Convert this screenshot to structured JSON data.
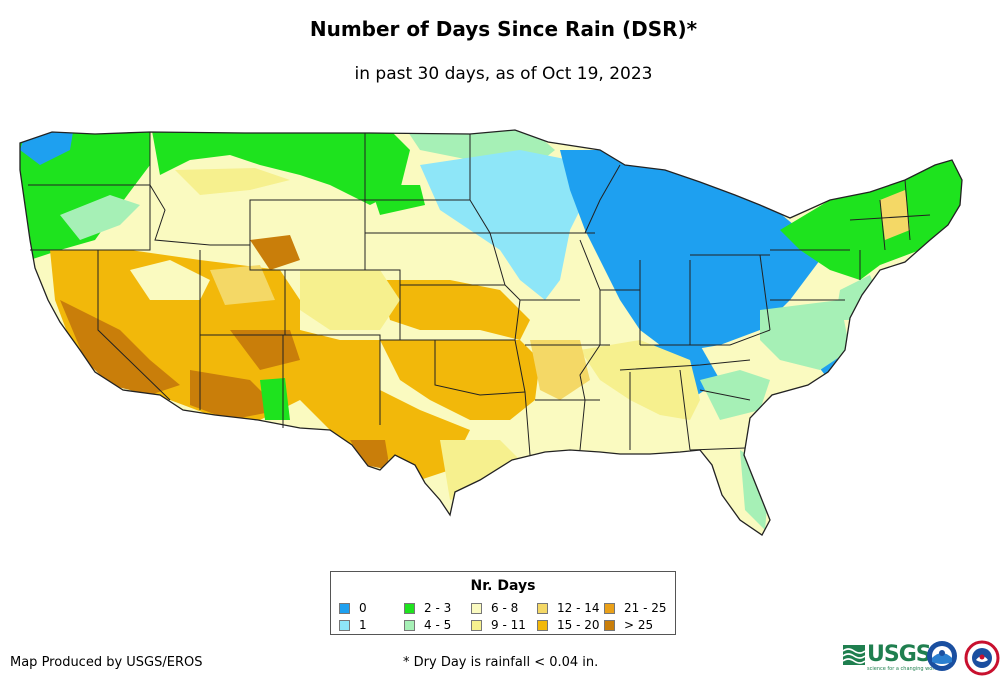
{
  "title": "Number of Days Since Rain (DSR)*",
  "subtitle": "in past 30 days, as of Oct 19, 2023",
  "legend": {
    "title": "Nr. Days",
    "items": [
      {
        "label": "0",
        "color": "#1ea0f0"
      },
      {
        "label": "1",
        "color": "#8ee6f8"
      },
      {
        "label": "2 - 3",
        "color": "#1ee31e"
      },
      {
        "label": "4 - 5",
        "color": "#a6f0b6"
      },
      {
        "label": "6 - 8",
        "color": "#fafac0"
      },
      {
        "label": "9 - 11",
        "color": "#f6f08e"
      },
      {
        "label": "12 - 14",
        "color": "#f4d866"
      },
      {
        "label": "15 - 20",
        "color": "#f2b80a"
      },
      {
        "label": "21 - 25",
        "color": "#eaa018"
      },
      {
        "label": "> 25",
        "color": "#c97e0a"
      }
    ]
  },
  "credit": "Map Produced by USGS/EROS",
  "footnote": "* Dry Day is rainfall < 0.04 in.",
  "logos": {
    "usgs": "USGS",
    "usgs_tagline": "science for a changing world"
  }
}
